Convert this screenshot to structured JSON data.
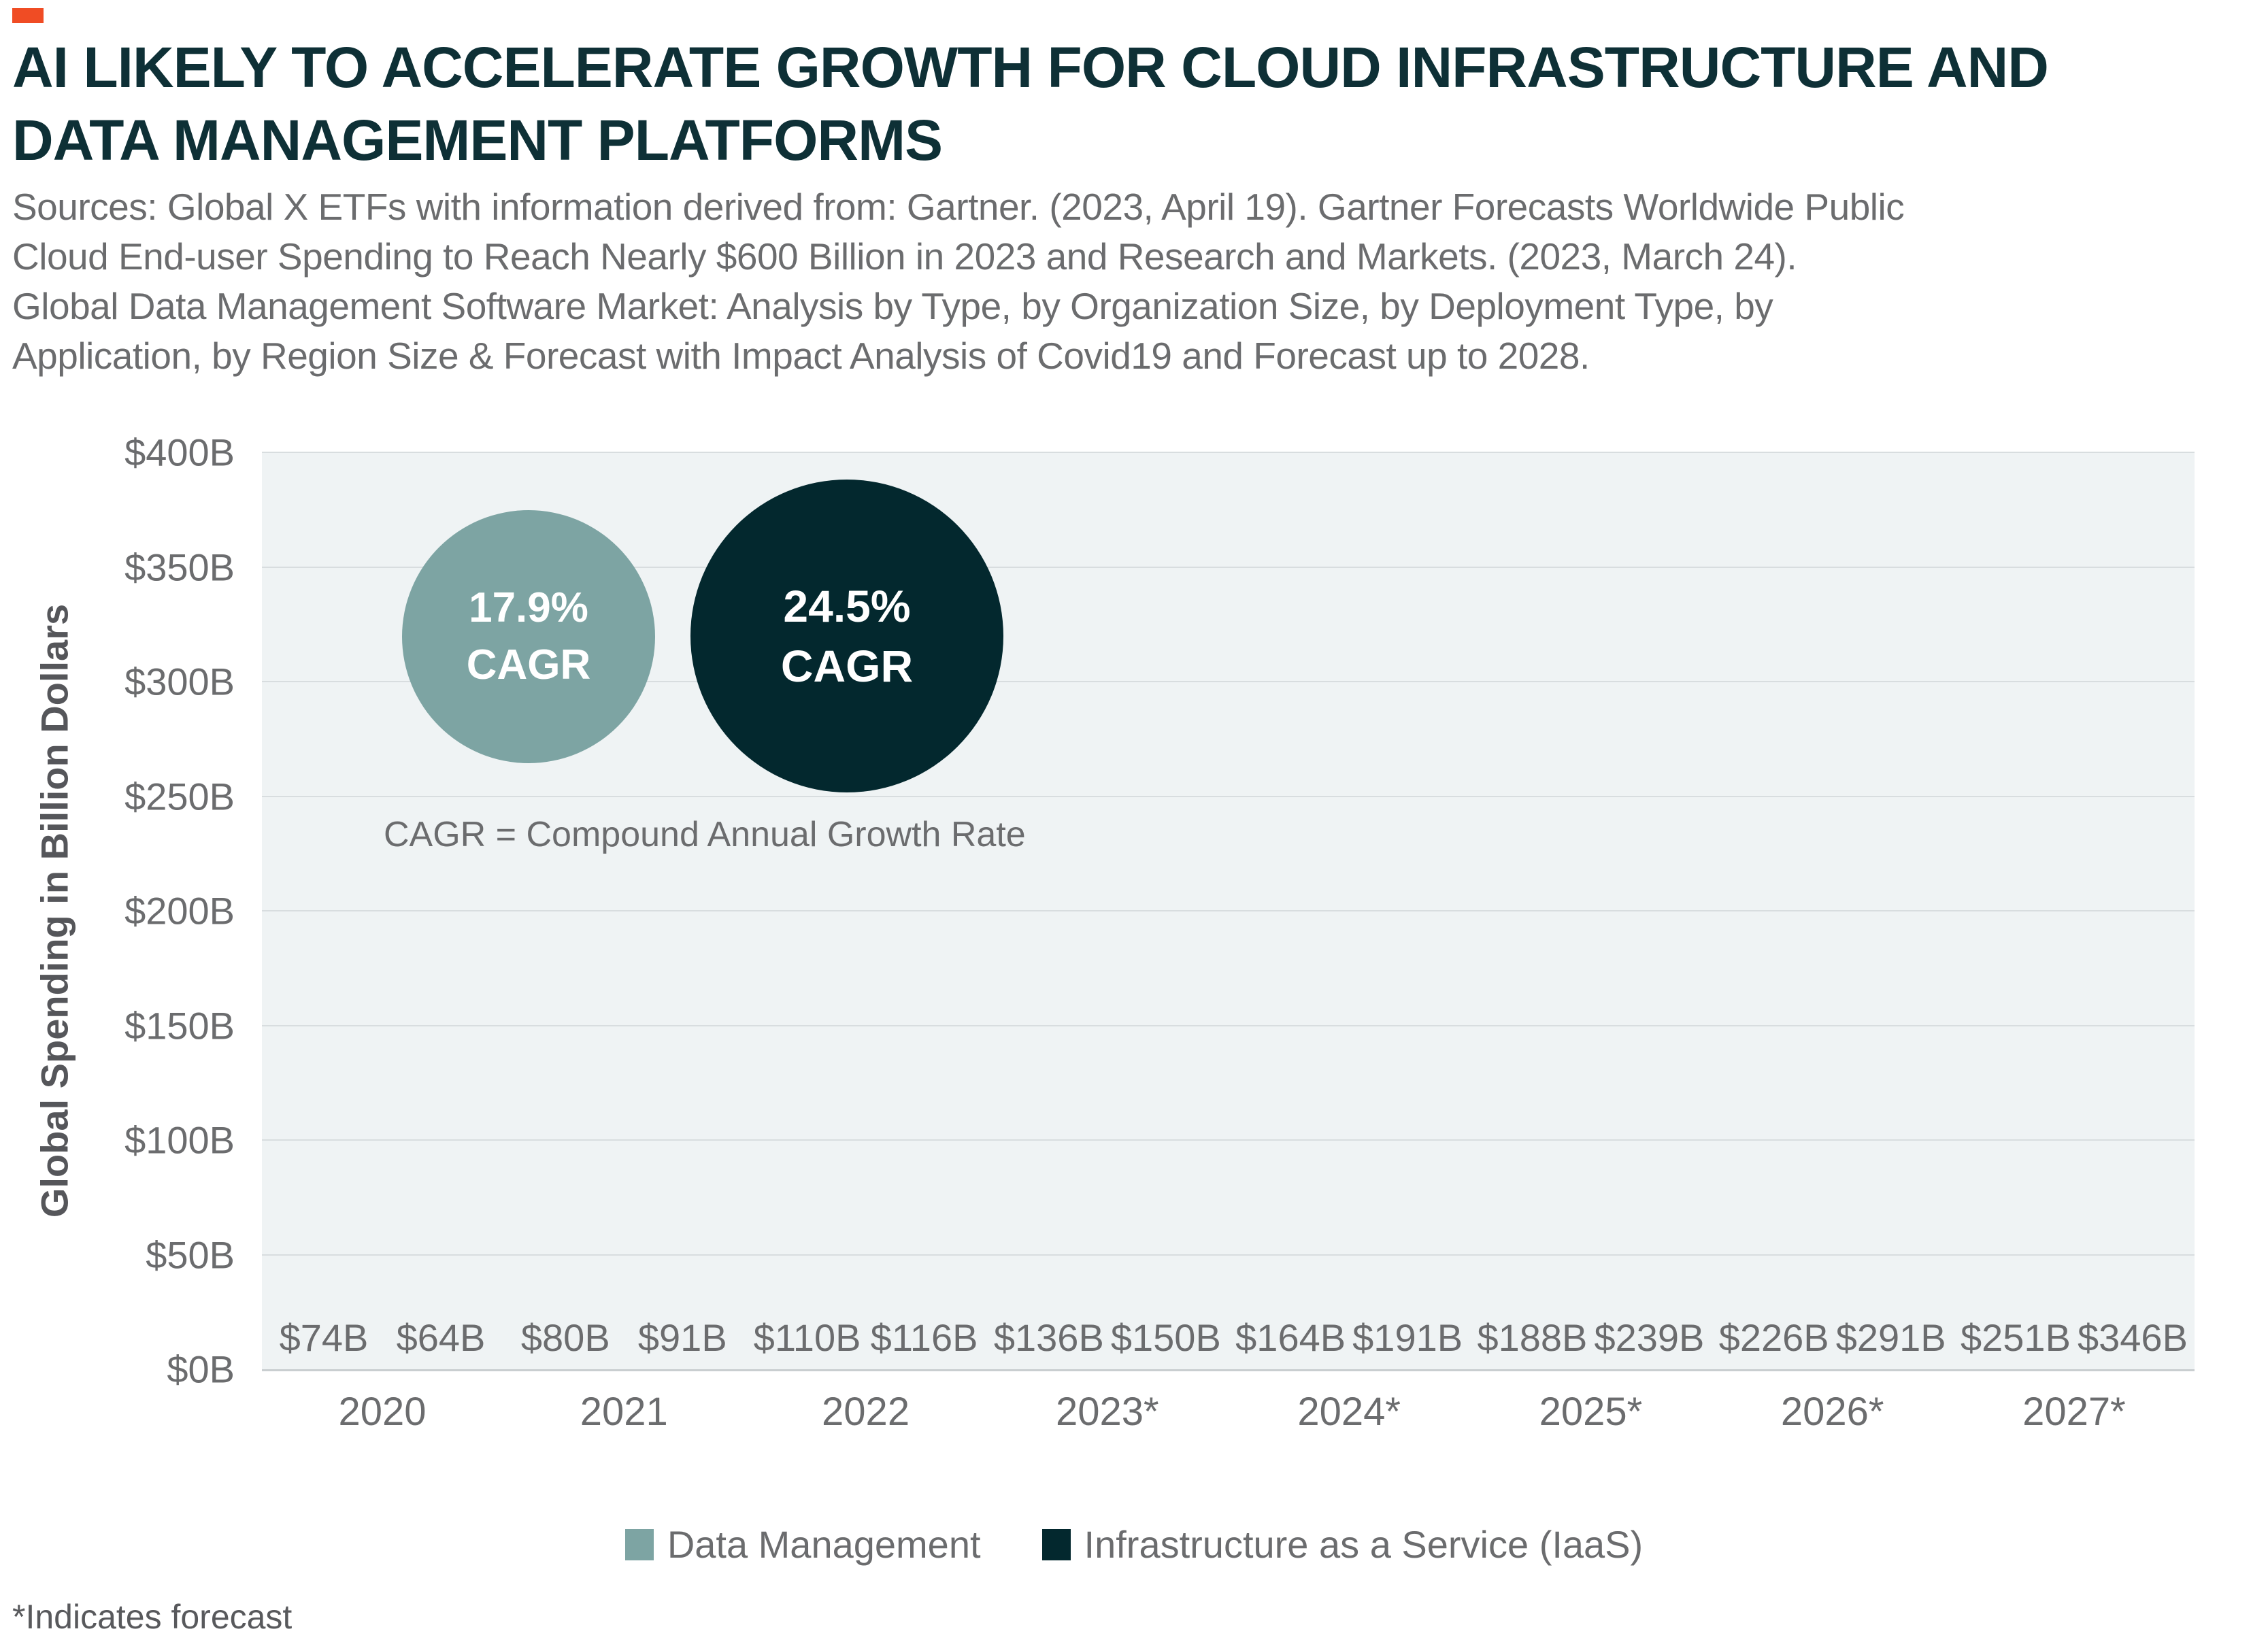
{
  "page": {
    "accent_color": "#f04c24",
    "title_lines": [
      "AI LIKELY TO ACCELERATE GROWTH FOR CLOUD INFRASTRUCTURE AND",
      "DATA MANAGEMENT PLATFORMS"
    ],
    "source_lines": [
      "Sources: Global X ETFs with information derived from: Gartner. (2023, April 19). Gartner Forecasts Worldwide Public",
      "Cloud End-user Spending to Reach Nearly $600 Billion in 2023 and Research and Markets. (2023, March 24).",
      "Global Data Management Software Market: Analysis by Type, by Organization Size, by Deployment Type, by",
      "Application, by Region Size & Forecast with Impact Analysis of Covid19 and Forecast up to 2028.",
      "Sources: Global X ETFs with information derived from: Gartner. (2023, April 19). Gartner Forecasts Worldwide Public Cloud End-user Spending to Reach Nearly $600 Billion in 2023 and Research and Markets. (2023, March 24). Global Data Management Software Market: Analysis by Type, by Organization Size, by Deployment Type, by Application, by Region Size & Forecast with Impact Analysis of Covid19 and Forecast up to 2028."
    ],
    "footnote": "*Indicates forecast"
  },
  "chart_data": {
    "type": "bar",
    "categories": [
      "2020",
      "2021",
      "2022",
      "2023*",
      "2024*",
      "2025*",
      "2026*",
      "2027*"
    ],
    "series": [
      {
        "name": "Data Management",
        "color": "#7da4a3",
        "cagr": "17.9%",
        "values": [
          74,
          80,
          110,
          136,
          164,
          188,
          226,
          251
        ],
        "value_labels": [
          "$74B",
          "$80B",
          "$110B",
          "$136B",
          "$164B",
          "$188B",
          "$226B",
          "$251B"
        ]
      },
      {
        "name": "Infrastructure as a Service (IaaS)",
        "color": "#03282e",
        "cagr": "24.5%",
        "values": [
          64,
          91,
          116,
          150,
          191,
          239,
          291,
          346
        ],
        "value_labels": [
          "$64B",
          "$91B",
          "$116B",
          "$150B",
          "$191B",
          "$239B",
          "$291B",
          "$346B"
        ]
      }
    ],
    "xlabel": "",
    "ylabel": "Global Spending in Billion Dollars",
    "ylim": [
      0,
      400
    ],
    "ytick_step": 50,
    "yticks": [
      "$400B",
      "$350B",
      "$300B",
      "$250B",
      "$200B",
      "$150B",
      "$100B",
      "$50B",
      "$0B"
    ],
    "grid": true,
    "legend_position": "bottom",
    "annotations": {
      "cagr_circles": [
        {
          "value": "17.9%",
          "caption": "CAGR",
          "series": "Data Management"
        },
        {
          "value": "24.5%",
          "caption": "CAGR",
          "series": "Infrastructure as a Service (IaaS)"
        }
      ],
      "cagr_note": "CAGR = Compound Annual Growth Rate"
    }
  }
}
